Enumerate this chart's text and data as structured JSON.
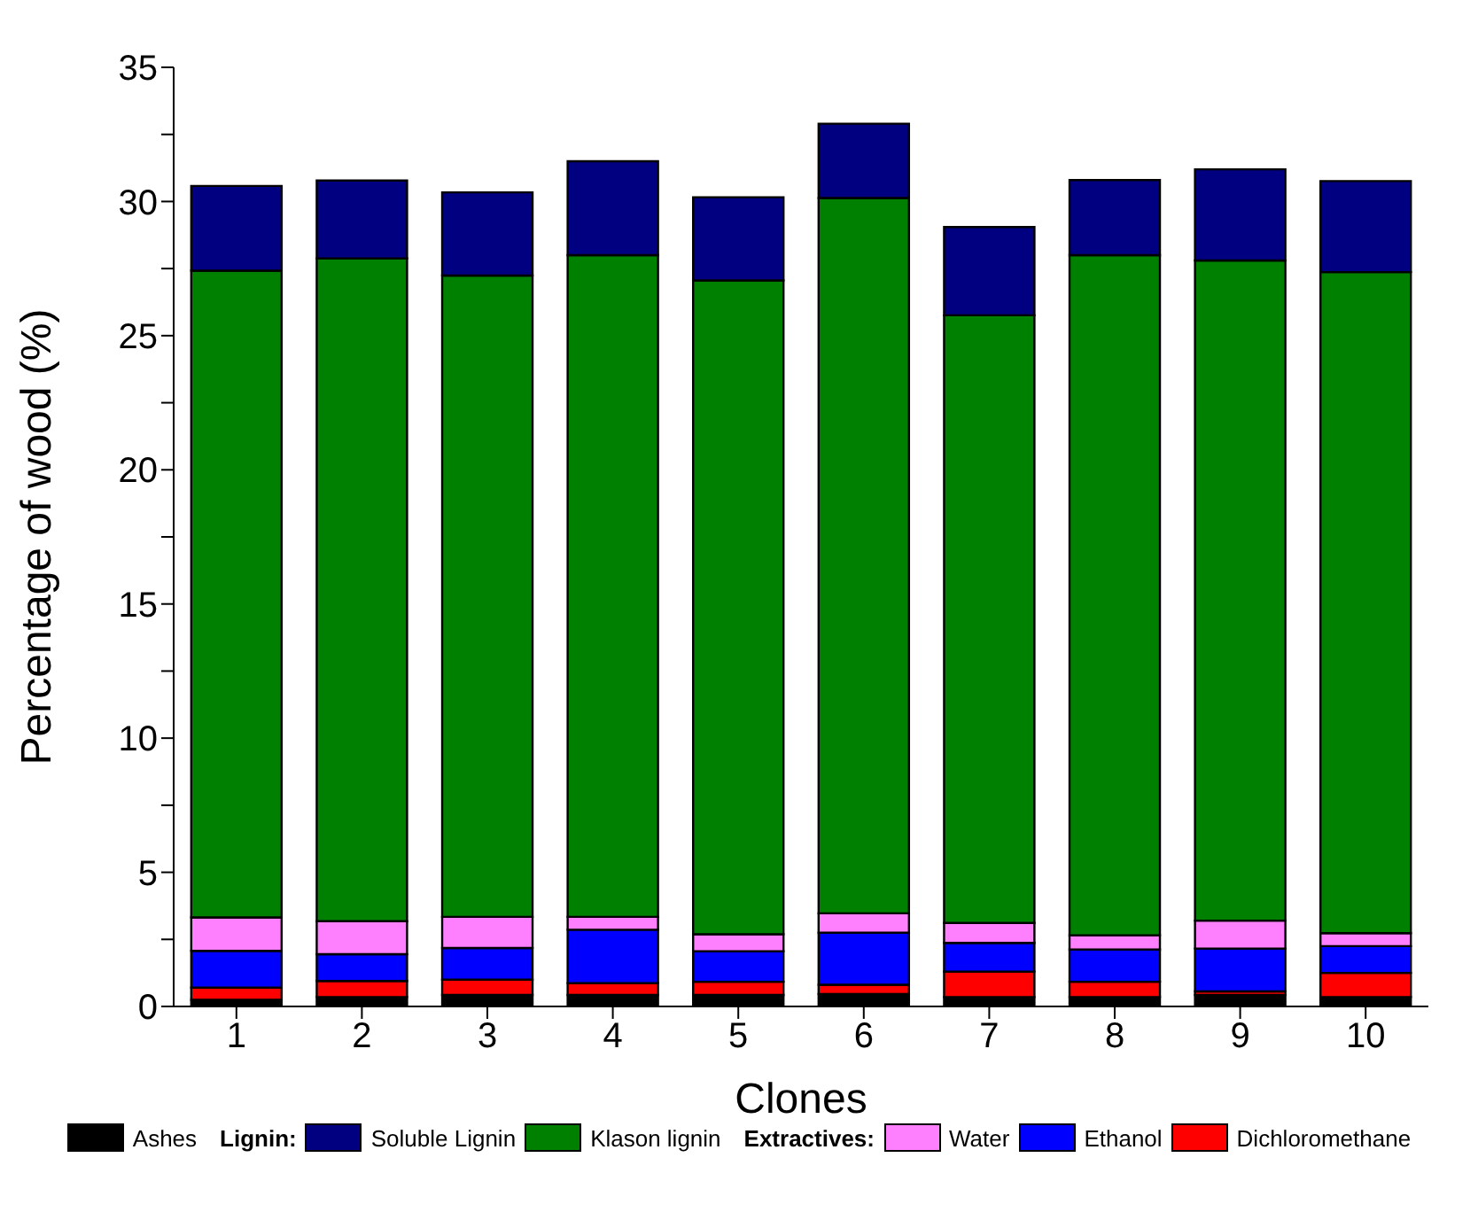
{
  "chart_data": {
    "type": "bar",
    "stacked": true,
    "xlabel": "Clones",
    "ylabel": "Percentage of wood (%)",
    "categories": [
      "1",
      "2",
      "3",
      "4",
      "5",
      "6",
      "7",
      "8",
      "9",
      "10"
    ],
    "series": [
      {
        "name": "Ashes",
        "color": "#000000",
        "values": [
          0.25,
          0.35,
          0.43,
          0.43,
          0.43,
          0.46,
          0.35,
          0.35,
          0.43,
          0.35
        ]
      },
      {
        "name": "Dichloromethane",
        "color": "#ff0000",
        "values": [
          0.45,
          0.6,
          0.57,
          0.44,
          0.49,
          0.35,
          0.95,
          0.57,
          0.13,
          0.9
        ]
      },
      {
        "name": "Ethanol",
        "color": "#0000ff",
        "values": [
          1.37,
          1.0,
          1.18,
          1.99,
          1.14,
          1.94,
          1.07,
          1.2,
          1.6,
          1.0
        ]
      },
      {
        "name": "Water",
        "color": "#ff80ff",
        "values": [
          1.25,
          1.23,
          1.16,
          0.48,
          0.63,
          0.72,
          0.74,
          0.53,
          1.04,
          0.48
        ]
      },
      {
        "name": "Klason lignin",
        "color": "#008000",
        "values": [
          24.1,
          24.7,
          23.9,
          24.66,
          24.37,
          26.66,
          22.65,
          25.35,
          24.6,
          24.64
        ]
      },
      {
        "name": "Soluble Lignin",
        "color": "#000080",
        "values": [
          3.16,
          2.9,
          3.1,
          3.5,
          3.1,
          2.77,
          3.29,
          2.8,
          3.4,
          3.39
        ]
      }
    ],
    "ylim": [
      0,
      35
    ],
    "yticks": [
      0,
      {
        "value": 2.5,
        "label": null
      },
      5,
      {
        "value": 7.5,
        "label": null
      },
      10,
      {
        "value": 12.5,
        "label": null
      },
      15,
      {
        "value": 17.5,
        "label": null
      },
      20,
      {
        "value": 22.5,
        "label": null
      },
      25,
      {
        "value": 27.5,
        "label": null
      },
      30,
      {
        "value": 32.5,
        "label": null
      },
      35
    ],
    "legend": "bottom",
    "annotations": [
      "Lignin:",
      "Extractives:"
    ]
  }
}
